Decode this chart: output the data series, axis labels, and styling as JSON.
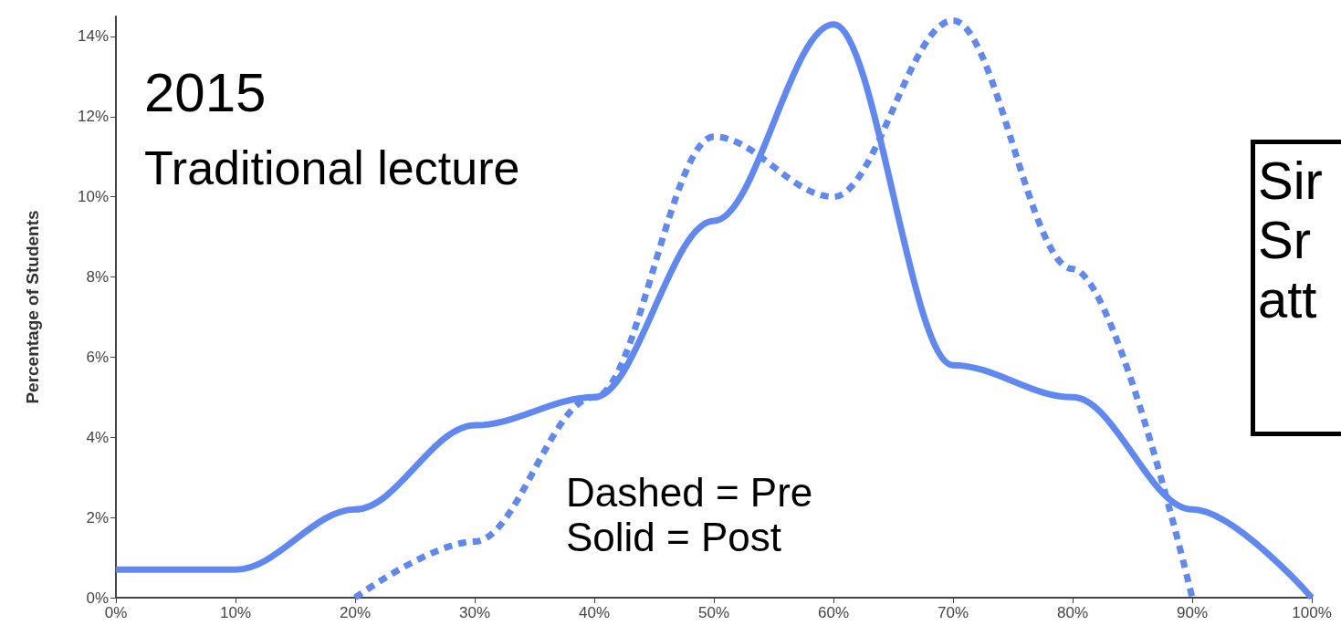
{
  "chart_data": {
    "type": "line",
    "ylabel": "Percentage of Students",
    "x": [
      0,
      10,
      20,
      30,
      40,
      50,
      60,
      70,
      80,
      90,
      100
    ],
    "series": [
      {
        "color": "#6088f2",
        "line_style": "dashed",
        "x": [
          20,
          30,
          40,
          50,
          60,
          70,
          80,
          90
        ],
        "values": [
          0,
          1.4,
          5.0,
          11.5,
          10.0,
          14.4,
          8.2,
          0
        ]
      },
      {
        "color": "#6088f2",
        "line_style": "solid",
        "values": [
          0.7,
          0.7,
          2.2,
          4.3,
          5.0,
          9.4,
          14.3,
          5.8,
          5.0,
          2.2,
          0
        ]
      }
    ],
    "xlim": [
      0,
      100
    ],
    "xticks": [
      {
        "value": 0,
        "label": "0%"
      },
      {
        "value": 10,
        "label": "10%"
      },
      {
        "value": 20,
        "label": "20%"
      },
      {
        "value": 30,
        "label": "30%"
      },
      {
        "value": 40,
        "label": "40%"
      },
      {
        "value": 50,
        "label": "50%"
      },
      {
        "value": 60,
        "label": "60%"
      },
      {
        "value": 70,
        "label": "70%"
      },
      {
        "value": 80,
        "label": "80%"
      },
      {
        "value": 90,
        "label": "90%"
      },
      {
        "value": 100,
        "label": "100%"
      }
    ],
    "ylim": [
      0,
      14.5
    ],
    "yticks": [
      {
        "value": 0,
        "label": "0%"
      },
      {
        "value": 2,
        "label": "2%"
      },
      {
        "value": 4,
        "label": "4%"
      },
      {
        "value": 6,
        "label": "6%"
      },
      {
        "value": 8,
        "label": "8%"
      },
      {
        "value": 10,
        "label": "10%"
      },
      {
        "value": 12,
        "label": "12%"
      },
      {
        "value": 14,
        "label": "14%"
      }
    ],
    "annotations": [
      "2015",
      "Traditional lecture",
      "Dashed = Pre\nSolid = Post",
      "Sir\nSr\natt"
    ],
    "grid": false,
    "marker": "none"
  }
}
